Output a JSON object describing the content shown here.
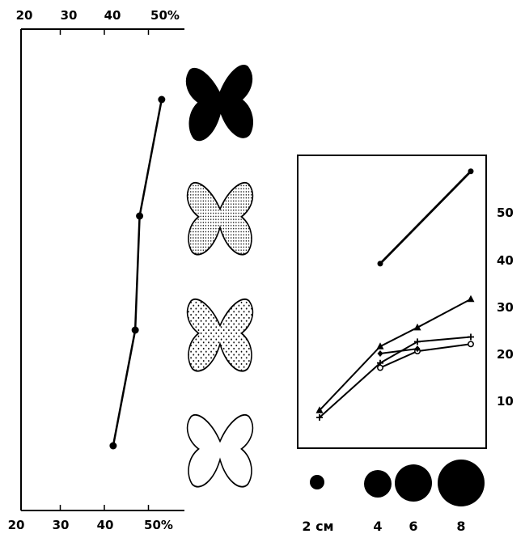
{
  "chart_data": [
    {
      "type": "scatter",
      "title": "",
      "xlabel": "",
      "ylabel": "",
      "x_axis": {
        "range": [
          20,
          55
        ],
        "ticks": [
          20,
          30,
          40,
          50
        ],
        "tick_labels": [
          "20",
          "30",
          "40",
          "50%"
        ]
      },
      "top_tick_labels": [
        "20",
        "30",
        "40",
        "50%"
      ],
      "categories": [
        "black",
        "dense-dots",
        "sparse-dots",
        "white"
      ],
      "series": [
        {
          "values": [
            53,
            48,
            47,
            42
          ]
        }
      ],
      "grid": false
    },
    {
      "type": "line",
      "title": "",
      "xlabel": "",
      "ylabel": "",
      "x_categories": [
        2,
        4,
        6,
        8
      ],
      "x_labels": [
        "2 см",
        "4",
        "6",
        "8"
      ],
      "y_axis": {
        "range": [
          0,
          60
        ],
        "ticks": [
          10,
          20,
          30,
          40,
          50
        ],
        "tick_labels": [
          "10",
          "20",
          "30",
          "40",
          "50"
        ],
        "position": "right"
      },
      "series": [
        {
          "marker": "circle-filled",
          "points": [
            [
              4,
              39
            ],
            [
              8,
              58.5
            ]
          ]
        },
        {
          "marker": "triangle",
          "points": [
            [
              2,
              8
            ],
            [
              4,
              21.5
            ],
            [
              6,
              25.5
            ],
            [
              8,
              31.5
            ]
          ]
        },
        {
          "marker": "plus",
          "points": [
            [
              2,
              6.5
            ],
            [
              4,
              18
            ],
            [
              6,
              22.5
            ],
            [
              8,
              23.5
            ]
          ]
        },
        {
          "marker": "open-circle",
          "points": [
            [
              4,
              17
            ],
            [
              6,
              20.5
            ],
            [
              8,
              22
            ]
          ]
        },
        {
          "marker": "diamond",
          "points": [
            [
              4,
              20
            ],
            [
              6,
              21
            ]
          ]
        }
      ],
      "grid": false
    }
  ],
  "pictograms": [
    "black-butterfly",
    "dense-dotted-butterfly",
    "sparse-dotted-butterfly",
    "white-butterfly"
  ],
  "colors": {
    "ink": "#000000",
    "paper": "#ffffff"
  }
}
